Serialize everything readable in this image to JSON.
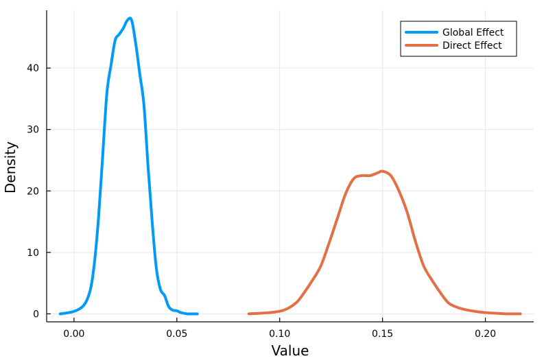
{
  "chart_data": {
    "type": "line",
    "title": "",
    "xlabel": "Value",
    "ylabel": "Density",
    "xlim": [
      -0.0133,
      0.2235
    ],
    "ylim": [
      -1.3,
      49.4
    ],
    "xticks": [
      0.0,
      0.05,
      0.1,
      0.15,
      0.2
    ],
    "xtick_labels": [
      "0.00",
      "0.05",
      "0.10",
      "0.15",
      "0.20"
    ],
    "yticks": [
      0,
      10,
      20,
      30,
      40
    ],
    "ytick_labels": [
      "0",
      "10",
      "20",
      "30",
      "40"
    ],
    "grid": true,
    "legend_position": "top-right",
    "series": [
      {
        "name": "Global Effect",
        "color": "#009af9",
        "x": [
          -0.0067,
          0.0,
          0.005,
          0.008,
          0.01,
          0.012,
          0.014,
          0.016,
          0.018,
          0.02,
          0.022,
          0.024,
          0.026,
          0.028,
          0.03,
          0.032,
          0.034,
          0.036,
          0.038,
          0.04,
          0.042,
          0.044,
          0.046,
          0.048,
          0.05,
          0.052,
          0.055,
          0.06
        ],
        "values": [
          0.0,
          0.4,
          1.5,
          4.0,
          8.5,
          16.0,
          26.0,
          36.0,
          40.5,
          44.5,
          45.5,
          46.5,
          47.8,
          47.8,
          44.0,
          39.0,
          34.0,
          24.0,
          15.0,
          7.5,
          4.0,
          3.0,
          1.2,
          0.6,
          0.5,
          0.2,
          0.0,
          0.0
        ]
      },
      {
        "name": "Direct Effect",
        "color": "#e26f46",
        "x": [
          0.085,
          0.095,
          0.102,
          0.108,
          0.112,
          0.116,
          0.12,
          0.124,
          0.128,
          0.132,
          0.136,
          0.14,
          0.144,
          0.148,
          0.15,
          0.154,
          0.158,
          0.162,
          0.166,
          0.17,
          0.174,
          0.178,
          0.182,
          0.186,
          0.19,
          0.195,
          0.2,
          0.205,
          0.21,
          0.217
        ],
        "values": [
          0.0,
          0.2,
          0.6,
          1.8,
          3.5,
          5.5,
          7.8,
          11.5,
          15.5,
          19.5,
          22.0,
          22.5,
          22.5,
          23.0,
          23.2,
          22.5,
          20.0,
          16.5,
          11.8,
          7.8,
          5.5,
          3.5,
          1.8,
          1.1,
          0.7,
          0.4,
          0.2,
          0.1,
          0.0,
          0.0
        ]
      }
    ]
  }
}
